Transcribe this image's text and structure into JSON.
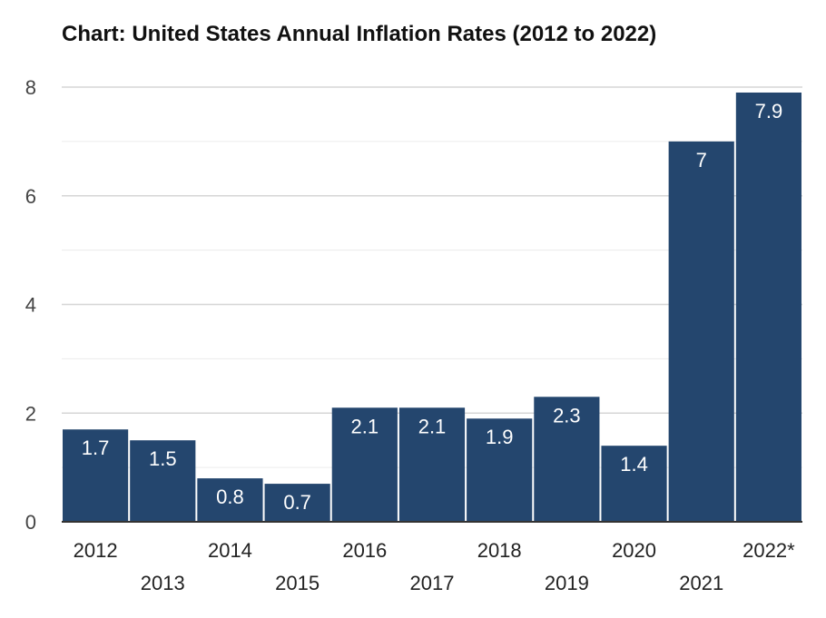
{
  "chart_data": {
    "type": "bar",
    "title": "Chart: United States Annual Inflation Rates (2012 to 2022)",
    "xlabel": "",
    "ylabel": "",
    "categories": [
      "2012",
      "2013",
      "2014",
      "2015",
      "2016",
      "2017",
      "2018",
      "2019",
      "2020",
      "2021",
      "2022*"
    ],
    "values": [
      1.7,
      1.5,
      0.8,
      0.7,
      2.1,
      2.1,
      1.9,
      2.3,
      1.4,
      7,
      7.9
    ],
    "data_labels": [
      "1.7",
      "1.5",
      "0.8",
      "0.7",
      "2.1",
      "2.1",
      "1.9",
      "2.3",
      "1.4",
      "7",
      "7.9"
    ],
    "ylim": [
      0,
      8
    ],
    "yticks": [
      0,
      2,
      4,
      6,
      8
    ],
    "grid": true,
    "legend": "none",
    "bar_color": "#24466e",
    "colors": {
      "gridline": "#d6d6d6",
      "minor_gridline": "#ececec",
      "axis": "#333333"
    }
  }
}
